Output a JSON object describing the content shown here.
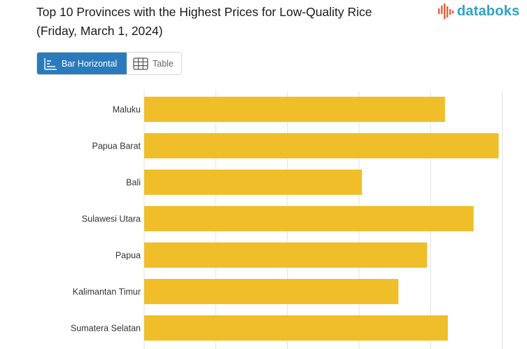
{
  "header": {
    "title_line1": "Top 10 Provinces with the Highest Prices for Low-Quality Rice",
    "title_line2": "(Friday, March 1, 2024)",
    "logo_text": "databoks"
  },
  "view_toggle": {
    "bar_label": "Bar Horizontal",
    "table_label": "Table",
    "selected": "Bar Horizontal"
  },
  "colors": {
    "bar": "#EFBE29",
    "accent": "#2A7BBD",
    "logo": "#2EA3C4",
    "logo_bars": "#E8603C",
    "grid": "#E2E2E2"
  },
  "chart_data": {
    "type": "bar",
    "orientation": "horizontal",
    "categories": [
      "Maluku",
      "Papua Barat",
      "Bali",
      "Sulawesi Utara",
      "Papua",
      "Kalimantan Timur",
      "Sumatera Selatan"
    ],
    "values": [
      21000,
      24750,
      15200,
      23000,
      19750,
      17750,
      21200
    ],
    "xlim": [
      0,
      30000
    ],
    "grid": true,
    "title": "Top 10 Provinces with the Highest Prices for Low-Quality Rice (Friday, March 1, 2024)"
  }
}
